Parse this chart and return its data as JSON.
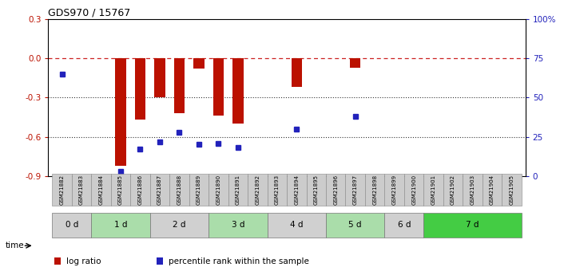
{
  "title": "GDS970 / 15767",
  "samples": [
    "GSM21882",
    "GSM21883",
    "GSM21884",
    "GSM21885",
    "GSM21886",
    "GSM21887",
    "GSM21888",
    "GSM21889",
    "GSM21890",
    "GSM21891",
    "GSM21892",
    "GSM21893",
    "GSM21894",
    "GSM21895",
    "GSM21896",
    "GSM21897",
    "GSM21898",
    "GSM21899",
    "GSM21900",
    "GSM21901",
    "GSM21902",
    "GSM21903",
    "GSM21904",
    "GSM21905"
  ],
  "log_ratio": [
    0.0,
    0.0,
    0.0,
    -0.82,
    -0.47,
    -0.3,
    -0.42,
    -0.08,
    -0.44,
    -0.5,
    0.0,
    0.0,
    -0.22,
    0.0,
    0.0,
    -0.07,
    0.0,
    0.0,
    0.0,
    0.0,
    0.0,
    0.0,
    0.0,
    0.0
  ],
  "percentile_rank": [
    65,
    null,
    null,
    3,
    17,
    22,
    28,
    20,
    21,
    18,
    null,
    null,
    30,
    null,
    null,
    38,
    null,
    null,
    null,
    null,
    null,
    null,
    null,
    null
  ],
  "time_group_starts": [
    0,
    2,
    5,
    8,
    11,
    14,
    17,
    19
  ],
  "time_group_ends": [
    1,
    4,
    7,
    10,
    13,
    16,
    18,
    23
  ],
  "time_group_labels": [
    "0 d",
    "1 d",
    "2 d",
    "3 d",
    "4 d",
    "5 d",
    "6 d",
    "7 d"
  ],
  "time_group_colors": [
    "#d0d0d0",
    "#aaddaa",
    "#d0d0d0",
    "#aaddaa",
    "#d0d0d0",
    "#aaddaa",
    "#d0d0d0",
    "#44cc44"
  ],
  "ylim_left": [
    -0.9,
    0.3
  ],
  "ylim_right": [
    0,
    100
  ],
  "yticks_left": [
    -0.9,
    -0.6,
    -0.3,
    0.0,
    0.3
  ],
  "yticks_right": [
    0,
    25,
    50,
    75,
    100
  ],
  "ytick_labels_right": [
    "0",
    "25",
    "50",
    "75",
    "100%"
  ],
  "bar_color": "#bb1100",
  "dot_color": "#2222bb",
  "dashed_line_color": "#cc2222",
  "dotted_line_color": "#333333",
  "sample_box_color": "#cccccc",
  "sample_box_border": "#888888"
}
